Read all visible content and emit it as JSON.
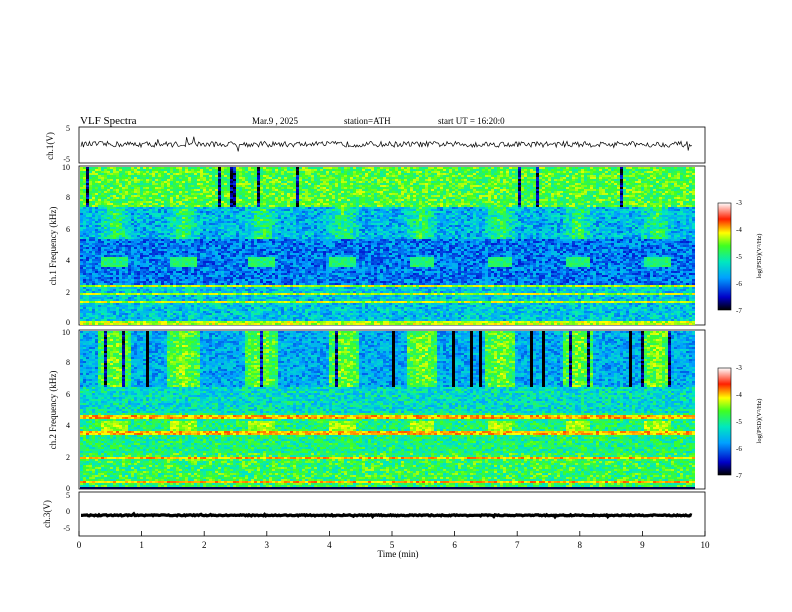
{
  "header": {
    "title": "VLF Spectra",
    "date": "Mar.9 , 2025",
    "station": "station=ATH",
    "start": "start UT = 16:20:0"
  },
  "chart_data": [
    {
      "type": "line",
      "panel": "ch1-waveform",
      "ylabel": "ch.1(V)",
      "ylim": [
        -5,
        5
      ],
      "yticks": [
        "5",
        "-5"
      ],
      "xlim": [
        0,
        10
      ],
      "baseline": 0.2,
      "color": "#000000"
    },
    {
      "type": "heatmap",
      "panel": "ch1-spectrogram",
      "ylabel": "ch.1 Frequency (kHz)",
      "ylim": [
        0,
        10
      ],
      "yticks": [
        "0",
        "2",
        "4",
        "6",
        "8",
        "10"
      ],
      "xlim": [
        0,
        9.8
      ],
      "burst_times_min": [
        0.55,
        1.65,
        2.9,
        4.2,
        5.45,
        6.7,
        7.95,
        9.2
      ],
      "burst_band_khz": [
        3.7,
        4.3
      ],
      "strong_lines_khz": [
        0.2,
        1.5,
        2.0,
        2.5
      ],
      "colorbar": {
        "label": "log(PSD)(V²/Hz)",
        "range": [
          -7,
          -3
        ],
        "ticks": [
          "-3",
          "-4",
          "-5",
          "-6",
          "-7"
        ]
      }
    },
    {
      "type": "heatmap",
      "panel": "ch2-spectrogram",
      "ylabel": "ch.2 Frequency (kHz)",
      "ylim": [
        0,
        10
      ],
      "yticks": [
        "0",
        "2",
        "4",
        "6",
        "8",
        "10"
      ],
      "xlim": [
        0,
        9.8
      ],
      "burst_times_min": [
        0.55,
        1.65,
        2.9,
        4.2,
        5.45,
        6.7,
        7.95,
        9.2
      ],
      "burst_band_khz": [
        3.7,
        4.3
      ],
      "strong_lines_khz": [
        2.0,
        3.6,
        4.6,
        0.5
      ],
      "colorbar": {
        "label": "log(PSD)(V²/Hz)",
        "range": [
          -7,
          -3
        ],
        "ticks": [
          "-3",
          "-4",
          "-5",
          "-6",
          "-7"
        ]
      }
    },
    {
      "type": "line",
      "panel": "ch3-waveform",
      "ylabel": "ch.3(V)",
      "ylim": [
        -5,
        5
      ],
      "yticks": [
        "5",
        "0",
        "-5"
      ],
      "xlim": [
        0,
        10
      ],
      "baseline": -0.3,
      "color": "#000000"
    }
  ],
  "xaxis": {
    "label": "Time (min)",
    "range": [
      0,
      10
    ],
    "ticks": [
      "0",
      "1",
      "2",
      "3",
      "4",
      "5",
      "6",
      "7",
      "8",
      "9",
      "10"
    ]
  }
}
